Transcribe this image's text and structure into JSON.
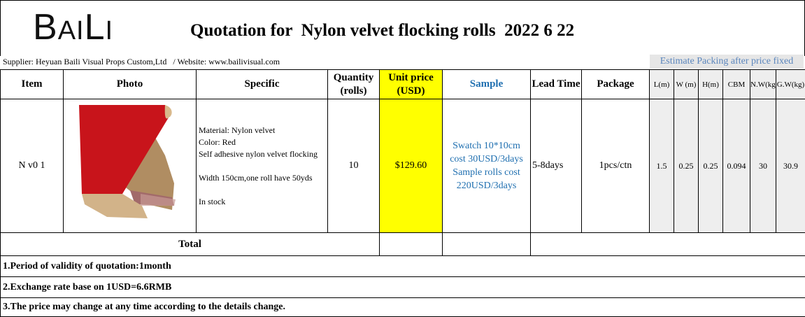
{
  "header": {
    "logo": {
      "big1": "B",
      "small1": "AI",
      "big2": "L",
      "small2": "I"
    },
    "title": "Quotation for  Nylon velvet flocking rolls  2022 6 22",
    "supplier": "Supplier: Heyuan Baili Visual Props Custom,Ltd   / Website: www.bailivisual.com",
    "estimate": "Estimate Packing after price fixed"
  },
  "columns": {
    "item": "Item",
    "photo": "Photo",
    "specific": "Specific",
    "quantity": [
      "Quantity",
      "(rolls)"
    ],
    "unit_price": [
      "Unit price",
      "(USD)"
    ],
    "sample": "Sample",
    "lead_time": "Lead Time",
    "package": "Package",
    "l": "L(m)",
    "w": "W (m)",
    "h": "H(m)",
    "cbm": "CBM",
    "nw": "N.W(kg)",
    "gw": "G.W(kg)"
  },
  "row": {
    "item": "N v0 1",
    "spec_lines": [
      "Material: Nylon velvet",
      "Color: Red",
      "Self adhesive nylon velvet flocking",
      "",
      "Width 150cm,one roll have 50yds",
      "",
      "In stock"
    ],
    "quantity": "10",
    "unit_price": "$129.60",
    "sample_lines": [
      "Swatch 10*10cm",
      "cost 30USD/3days",
      "Sample rolls cost",
      "220USD/3days"
    ],
    "lead_time": "5-8days",
    "package": "1pcs/ctn",
    "l": "1.5",
    "w": "0.25",
    "h": "0.25",
    "cbm": "0.094",
    "nw": "30",
    "gw": "30.9"
  },
  "total_label": "Total",
  "notes": [
    "1.Period of validity of quotation:1month",
    "2.Exchange rate base on 1USD=6.6RMB",
    "3.The price may change at any time according to the details change."
  ],
  "colors": {
    "highlight": "#ffff00",
    "sample_text": "#1f6fb0",
    "estimate_text": "#5b86bd",
    "velvet": "#c8141b",
    "backing": "#c9a77a"
  }
}
